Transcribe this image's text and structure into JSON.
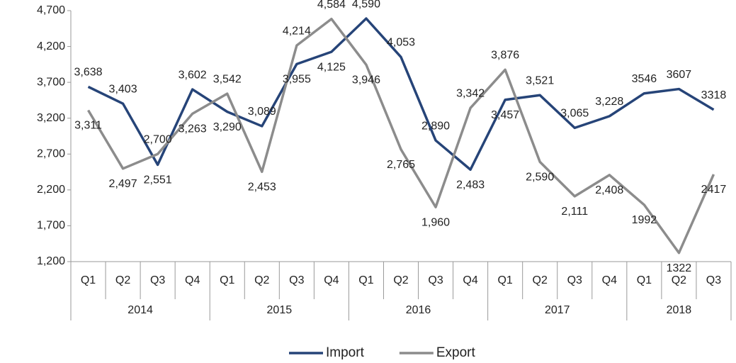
{
  "chart_data": {
    "type": "line",
    "categories": [
      "Q1",
      "Q2",
      "Q3",
      "Q4",
      "Q1",
      "Q2",
      "Q3",
      "Q4",
      "Q1",
      "Q2",
      "Q3",
      "Q4",
      "Q1",
      "Q2",
      "Q3",
      "Q4",
      "Q1",
      "Q2",
      "Q3"
    ],
    "groups": [
      {
        "name": "2014",
        "count": 4
      },
      {
        "name": "2015",
        "count": 4
      },
      {
        "name": "2016",
        "count": 4
      },
      {
        "name": "2017",
        "count": 4
      },
      {
        "name": "2018",
        "count": 3
      }
    ],
    "series": [
      {
        "name": "Import",
        "color": "#264478",
        "values": [
          3638,
          3403,
          2551,
          3602,
          3290,
          3089,
          3955,
          4125,
          4590,
          4053,
          2890,
          2483,
          3457,
          3521,
          3065,
          3228,
          3546,
          3607,
          3318
        ],
        "value_labels": [
          "3,638",
          "3,403",
          "2,551",
          "3,602",
          "3,290",
          "3,089",
          "3,955",
          "4,125",
          "4,590",
          "4,053",
          "2,890",
          "2,483",
          "3,457",
          "3,521",
          "3,065",
          "3,228",
          "3546",
          "3607",
          "3318"
        ]
      },
      {
        "name": "Export",
        "color": "#8c8c8c",
        "values": [
          3311,
          2497,
          2700,
          3263,
          3542,
          2453,
          4214,
          4584,
          3946,
          2765,
          1960,
          3342,
          3876,
          2590,
          2111,
          2408,
          1992,
          1322,
          2417
        ],
        "value_labels": [
          "3,311",
          "2,497",
          "2,700",
          "3,263",
          "3,542",
          "2,453",
          "4,214",
          "4,584",
          "3,946",
          "2,765",
          "1,960",
          "3,342",
          "3,876",
          "2,590",
          "2,111",
          "2,408",
          "1992",
          "1322",
          "2417"
        ]
      }
    ],
    "ylim": [
      1200,
      4700
    ],
    "yticks": [
      {
        "value": 1200,
        "label": "1,200"
      },
      {
        "value": 1700,
        "label": "1,700"
      },
      {
        "value": 2200,
        "label": "2,200"
      },
      {
        "value": 2700,
        "label": "2,700"
      },
      {
        "value": 3200,
        "label": "3,200"
      },
      {
        "value": 3700,
        "label": "3,700"
      },
      {
        "value": 4200,
        "label": "4,200"
      },
      {
        "value": 4700,
        "label": "4,700"
      }
    ],
    "legend": "bottom"
  }
}
